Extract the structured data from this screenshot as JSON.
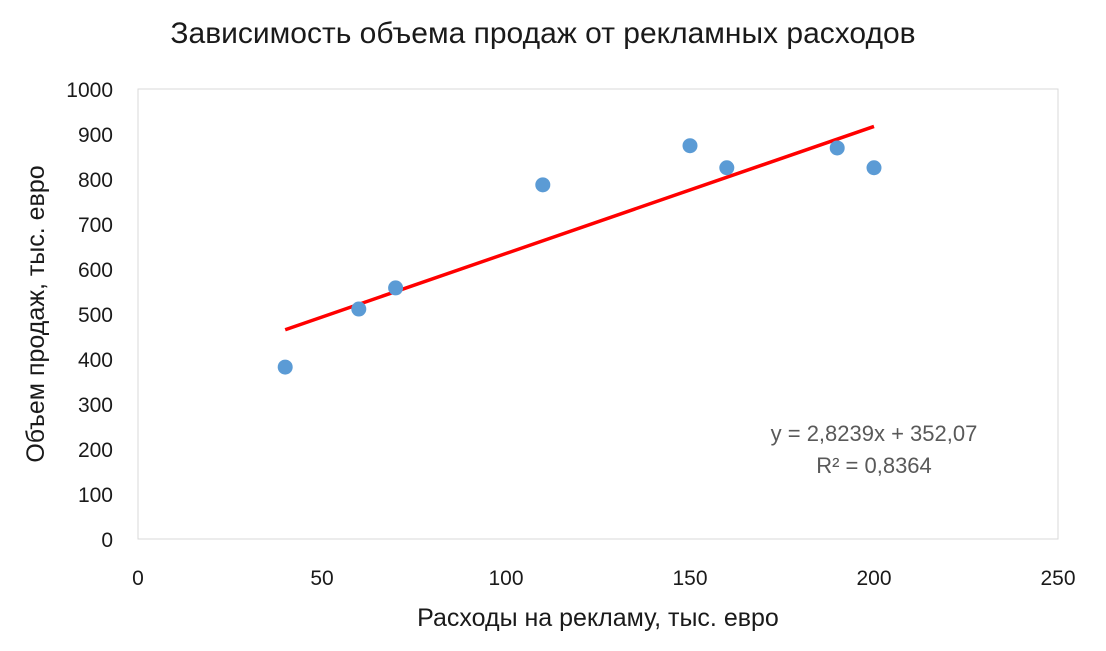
{
  "chart_data": {
    "type": "scatter",
    "title": "Зависимость объема продаж от рекламных расходов",
    "xlabel": "Расходы на рекламу, тыс. евро",
    "ylabel": "Объем продаж, тыс. евро",
    "xlim": [
      0,
      250
    ],
    "ylim": [
      0,
      1000
    ],
    "x_ticks": [
      0,
      50,
      100,
      150,
      200,
      250
    ],
    "y_ticks": [
      0,
      100,
      200,
      300,
      400,
      500,
      600,
      700,
      800,
      900,
      1000
    ],
    "grid": false,
    "points": [
      {
        "x": 40,
        "y": 382
      },
      {
        "x": 60,
        "y": 511
      },
      {
        "x": 70,
        "y": 558
      },
      {
        "x": 110,
        "y": 787
      },
      {
        "x": 150,
        "y": 874
      },
      {
        "x": 160,
        "y": 825
      },
      {
        "x": 190,
        "y": 869
      },
      {
        "x": 200,
        "y": 825
      }
    ],
    "trendline": {
      "type": "linear",
      "slope": 2.8239,
      "intercept": 352.07,
      "x_range": [
        40,
        200
      ],
      "color": "#ff0000",
      "equation_label": "y = 2,8239x + 352,07",
      "r2_label": "R² = 0,8364"
    },
    "point_color": "#5b9bd5"
  }
}
